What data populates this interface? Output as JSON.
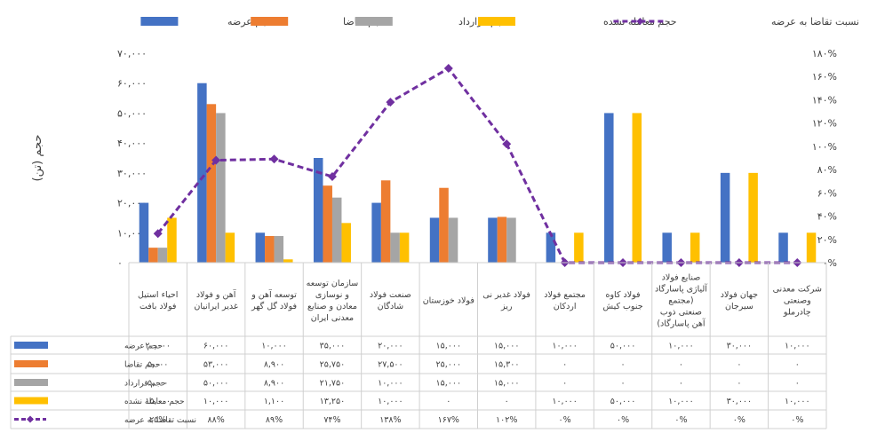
{
  "chart_data": {
    "type": "bar",
    "direction": "rtl",
    "categories": [
      [
        "احیاء استیل",
        "فولاد بافت"
      ],
      [
        "آهن و فولاد",
        "غدیر ایرانیان"
      ],
      [
        "توسعه آهن و",
        "فولاد گل گهر"
      ],
      [
        "سازمان توسعه",
        "و نوسازی",
        "معادن و صنایع",
        "معدنی ایران"
      ],
      [
        "صنعت فولاد",
        "شادگان"
      ],
      [
        "فولاد خوزستان"
      ],
      [
        "فولاد غدیر نی",
        "ریز"
      ],
      [
        "مجتمع فولاد",
        "اردکان"
      ],
      [
        "فولاد کاوه",
        "جنوب کیش"
      ],
      [
        "صنایع فولاد",
        "آلیاژی پاسارگاد",
        "(مجتمع",
        "صنعتی ذوب",
        "آهن پاسارگاد)"
      ],
      [
        "جهان فولاد",
        "سیرجان"
      ],
      [
        "شرکت معدنی",
        "وصنعتی",
        "چادرملو"
      ]
    ],
    "series": [
      {
        "name": "حجم عرضه",
        "color": "#4472C4",
        "kind": "bar",
        "values": [
          20000,
          60000,
          10000,
          35000,
          20000,
          15000,
          15000,
          10000,
          50000,
          10000,
          30000,
          10000
        ]
      },
      {
        "name": "حجم تقاضا",
        "color": "#ED7D31",
        "kind": "bar",
        "values": [
          5000,
          53000,
          8900,
          25750,
          27500,
          25000,
          15300,
          0,
          0,
          0,
          0,
          0
        ]
      },
      {
        "name": "حجم قرارداد",
        "color": "#A5A5A5",
        "kind": "bar",
        "values": [
          5000,
          50000,
          8900,
          21750,
          10000,
          15000,
          15000,
          0,
          0,
          0,
          0,
          0
        ]
      },
      {
        "name": "حجم معامله نشده",
        "color": "#FFC000",
        "kind": "bar",
        "values": [
          15000,
          10000,
          1100,
          13250,
          10000,
          0,
          0,
          10000,
          50000,
          10000,
          30000,
          10000
        ]
      },
      {
        "name": "نسبت تقاضا به عرضه",
        "color": "#7030A0",
        "kind": "line",
        "axis": "right",
        "values": [
          25,
          88,
          89,
          74,
          138,
          167,
          102,
          0,
          0,
          0,
          0,
          0
        ]
      }
    ],
    "table_rows": [
      [
        "۲۰,۰۰۰",
        "۶۰,۰۰۰",
        "۱۰,۰۰۰",
        "۳۵,۰۰۰",
        "۲۰,۰۰۰",
        "۱۵,۰۰۰",
        "۱۵,۰۰۰",
        "۱۰,۰۰۰",
        "۵۰,۰۰۰",
        "۱۰,۰۰۰",
        "۳۰,۰۰۰",
        "۱۰,۰۰۰"
      ],
      [
        "۵,۰۰۰",
        "۵۳,۰۰۰",
        "۸,۹۰۰",
        "۲۵,۷۵۰",
        "۲۷,۵۰۰",
        "۲۵,۰۰۰",
        "۱۵,۳۰۰",
        "۰",
        "۰",
        "۰",
        "۰",
        "۰"
      ],
      [
        "۵,۰۰۰",
        "۵۰,۰۰۰",
        "۸,۹۰۰",
        "۲۱,۷۵۰",
        "۱۰,۰۰۰",
        "۱۵,۰۰۰",
        "۱۵,۰۰۰",
        "۰",
        "۰",
        "۰",
        "۰",
        "۰"
      ],
      [
        "۱۵,۰۰۰",
        "۱۰,۰۰۰",
        "۱,۱۰۰",
        "۱۳,۲۵۰",
        "۱۰,۰۰۰",
        "۰",
        "۰",
        "۱۰,۰۰۰",
        "۵۰,۰۰۰",
        "۱۰,۰۰۰",
        "۳۰,۰۰۰",
        "۱۰,۰۰۰"
      ],
      [
        "۲۵%",
        "۸۸%",
        "۸۹%",
        "۷۴%",
        "۱۳۸%",
        "۱۶۷%",
        "۱۰۲%",
        "۰%",
        "۰%",
        "۰%",
        "۰%",
        "۰%"
      ]
    ],
    "ylabel": "حجم (تن)",
    "ylim": [
      0,
      70000
    ],
    "y2lim": [
      0,
      180
    ],
    "yticks": [
      "۰",
      "۱۰,۰۰۰",
      "۲۰,۰۰۰",
      "۳۰,۰۰۰",
      "۴۰,۰۰۰",
      "۵۰,۰۰۰",
      "۶۰,۰۰۰",
      "۷۰,۰۰۰"
    ],
    "y2ticks": [
      "۰%",
      "۲۰%",
      "۴۰%",
      "۶۰%",
      "۸۰%",
      "۱۰۰%",
      "۱۲۰%",
      "۱۴۰%",
      "۱۶۰%",
      "۱۸۰%"
    ],
    "legend_placement": "top",
    "grid": false
  }
}
